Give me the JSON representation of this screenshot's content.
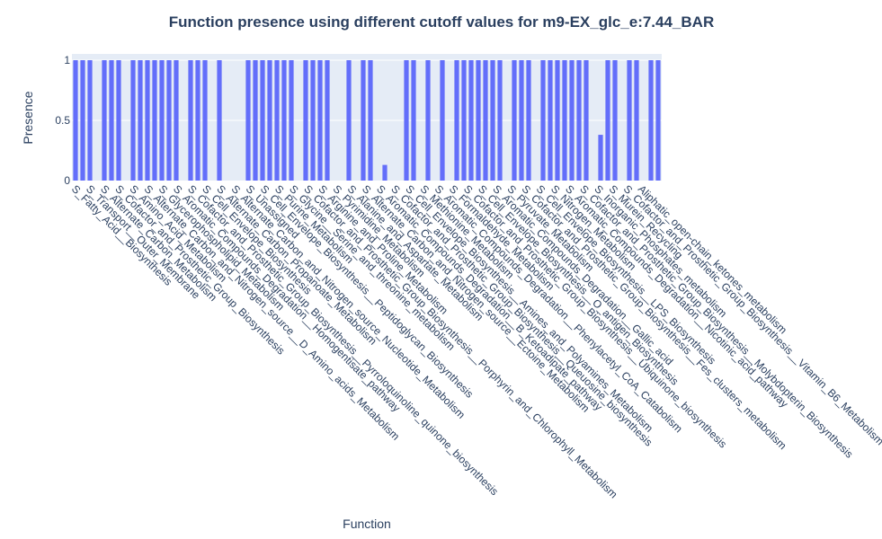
{
  "chart_data": {
    "type": "bar",
    "title": "Function presence using different cutoff values for m9-EX_glc_e:7.44_BAR",
    "xlabel": "Function",
    "ylabel": "Presence",
    "ylim": [
      0,
      1
    ],
    "yticks": [
      "0",
      "0.5",
      "1"
    ],
    "grid": true,
    "bar_color": "#636efa",
    "plot_bg": "#e5ecf6",
    "categories": [
      "S_Fatty_Acid__Biosynthesis",
      "S_Transport__Outer_Membrane",
      "S_Alternate_Carbon_Metabolism",
      "S_Cofactor_and_Prosthetic_Group_Biosynthesis",
      "S_Amino_Acid_Metabolism",
      "S_Alternate_Carbon_and_Nitrogen_source__D_Amino_acids_Metabolism",
      "S_Glycerophospholipid_Metabolism",
      "S_Aromatic_Compounds_Degradation__Homogentisate_pathway",
      "S_Cofactor_and_Prosthetic_Group_Biosynthesis__Pyrroloquinoline_quinone_biosynthesis",
      "S_Cell_Envelope_Biosynthesis",
      "S_Alternate_Carbon_Propanoate_Metabolism",
      "S_Alternate_Carbon_and_Nitrogen_source_Nucleotide_Metabolism",
      "S_Unassigned",
      "S_Cell_Envelope_Biosynthesis__Peptidoglycan_Biosynthesis",
      "S_Purine_Metabolism",
      "S_Glycine__Serine_and_threonine_metabolism",
      "S_Cofactor_and_Prosthetic_Group_Biosynthesis__Porphyrin_and_Chlorophyll_Metabolism",
      "S_Arginine_and_Proline_Metabolism",
      "S_Pyrimidine_Metabolism",
      "S_Alanine_and_Aspartate_Metabolism",
      "S_Alternate_Carbon_and_Nitrogen_source__Ectoine_Metabolism",
      "S_Aromatic_Compounds_Degradation__B_Ketoadipate_pathway",
      "S_Cofactor_and_Prosthetic_Group_Biosynthesis__Queuosine_biosynthesis",
      "S_Cell_Envelope_Biosynthesis__Amines_and_Polyamines_Metabolism",
      "S_Methionine_Metabolism",
      "S_Aromatic_Compounds_Degradation__Phenylacetyl_CoA_Catabolism",
      "S_Formaldehyde_Metabolism",
      "S_Cofactor_and_Prosthetic_Group_Biosynthesis__Ubiquinone_biosynthesis",
      "S_Cell_Envelope_Biosynthesis__O_antigen_Biosynthesis",
      "S_Aromatic_Compounds_Degradation__Gallic_acid",
      "S_Pyruvate_Metabolism",
      "S_Cofactor_and_Prosthetic_Group_Biosynthesis__Fes_clusters_metabolism",
      "S_Cell_Envelope_Biosynthesis__LPS_Biosynthesis",
      "S_Nitrogen_Metabolism",
      "S_Aromatic_Compounds_Degradation__Nicotinic_acid_pathway",
      "S_Cofactor_and_Prosthetic_Group_Biosynthesis__Molybdopterin_Biosynthesis",
      "S_Inorganic_Phosphates_metabolism",
      "S_Murein_Recycling",
      "S_Cofactor_and_Prosthetic_Group_Biosynthesis__Vitamin_B6_Metabolism",
      "Aliphatic_open-chain_ketones_metabolism"
    ],
    "bars": [
      {
        "x": 0,
        "value": 1
      },
      {
        "x": 1,
        "value": 1
      },
      {
        "x": 2,
        "value": 1
      },
      {
        "x": 4,
        "value": 1
      },
      {
        "x": 5,
        "value": 1
      },
      {
        "x": 6,
        "value": 1
      },
      {
        "x": 8,
        "value": 1
      },
      {
        "x": 9,
        "value": 1
      },
      {
        "x": 10,
        "value": 1
      },
      {
        "x": 11,
        "value": 1
      },
      {
        "x": 12,
        "value": 1
      },
      {
        "x": 13,
        "value": 1
      },
      {
        "x": 14,
        "value": 1
      },
      {
        "x": 16,
        "value": 1
      },
      {
        "x": 17,
        "value": 1
      },
      {
        "x": 18,
        "value": 1
      },
      {
        "x": 20,
        "value": 1
      },
      {
        "x": 24,
        "value": 1
      },
      {
        "x": 25,
        "value": 1
      },
      {
        "x": 26,
        "value": 1
      },
      {
        "x": 27,
        "value": 1
      },
      {
        "x": 28,
        "value": 1
      },
      {
        "x": 29,
        "value": 1
      },
      {
        "x": 30,
        "value": 1
      },
      {
        "x": 32,
        "value": 1
      },
      {
        "x": 33,
        "value": 1
      },
      {
        "x": 34,
        "value": 1
      },
      {
        "x": 35,
        "value": 1
      },
      {
        "x": 38,
        "value": 1
      },
      {
        "x": 40,
        "value": 1
      },
      {
        "x": 41,
        "value": 1
      },
      {
        "x": 43,
        "value": 0.13
      },
      {
        "x": 46,
        "value": 1
      },
      {
        "x": 47,
        "value": 1
      },
      {
        "x": 49,
        "value": 1
      },
      {
        "x": 51,
        "value": 1
      },
      {
        "x": 53,
        "value": 1
      },
      {
        "x": 54,
        "value": 1
      },
      {
        "x": 55,
        "value": 1
      },
      {
        "x": 56,
        "value": 1
      },
      {
        "x": 57,
        "value": 1
      },
      {
        "x": 58,
        "value": 1
      },
      {
        "x": 59,
        "value": 1
      },
      {
        "x": 61,
        "value": 1
      },
      {
        "x": 62,
        "value": 1
      },
      {
        "x": 63,
        "value": 1
      },
      {
        "x": 65,
        "value": 1
      },
      {
        "x": 66,
        "value": 1
      },
      {
        "x": 67,
        "value": 1
      },
      {
        "x": 68,
        "value": 1
      },
      {
        "x": 69,
        "value": 1
      },
      {
        "x": 70,
        "value": 1
      },
      {
        "x": 71,
        "value": 1
      },
      {
        "x": 73,
        "value": 0.38
      },
      {
        "x": 74,
        "value": 1
      },
      {
        "x": 75,
        "value": 1
      },
      {
        "x": 77,
        "value": 1
      },
      {
        "x": 78,
        "value": 1
      },
      {
        "x": 80,
        "value": 1
      },
      {
        "x": 81,
        "value": 1
      }
    ]
  }
}
